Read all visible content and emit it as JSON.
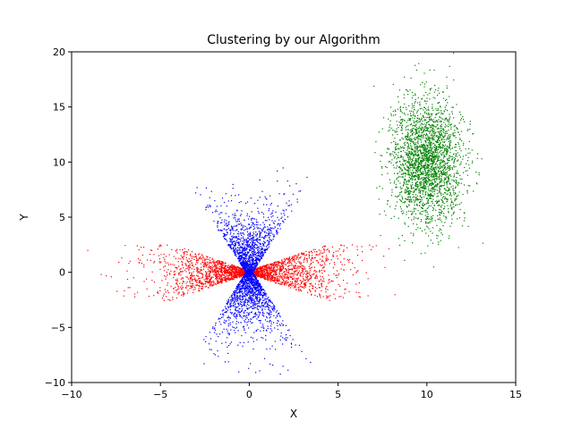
{
  "chart_data": {
    "type": "scatter",
    "title": "Clustering by our Algorithm",
    "xlabel": "X",
    "ylabel": "Y",
    "xlim": [
      -10,
      15
    ],
    "ylim": [
      -10,
      20
    ],
    "x_ticks": [
      -10,
      -5,
      0,
      5,
      10,
      15
    ],
    "y_ticks": [
      -10,
      -5,
      0,
      5,
      10,
      15,
      20
    ],
    "x_tick_labels": [
      "−10",
      "−5",
      "0",
      "5",
      "10",
      "15"
    ],
    "y_tick_labels": [
      "−10",
      "−5",
      "0",
      "5",
      "10",
      "15",
      "20"
    ],
    "grid": false,
    "legend": "none",
    "series": [
      {
        "color": "#ff0000",
        "shape": "horizontal bow-tie",
        "center": [
          0,
          0
        ],
        "x_range": [
          -9.5,
          8.5
        ],
        "y_range": [
          -2.5,
          2.5
        ],
        "approx_points": 2500
      },
      {
        "color": "#0000ff",
        "shape": "vertical bow-tie",
        "center": [
          0,
          0
        ],
        "x_range": [
          -4,
          3.5
        ],
        "y_range": [
          -9.5,
          9.5
        ],
        "approx_points": 2500
      },
      {
        "color": "#008000",
        "shape": "ellipse",
        "center": [
          10,
          10
        ],
        "x_range": [
          6.5,
          13.5
        ],
        "y_range": [
          0,
          20
        ],
        "approx_points": 2500
      }
    ]
  }
}
